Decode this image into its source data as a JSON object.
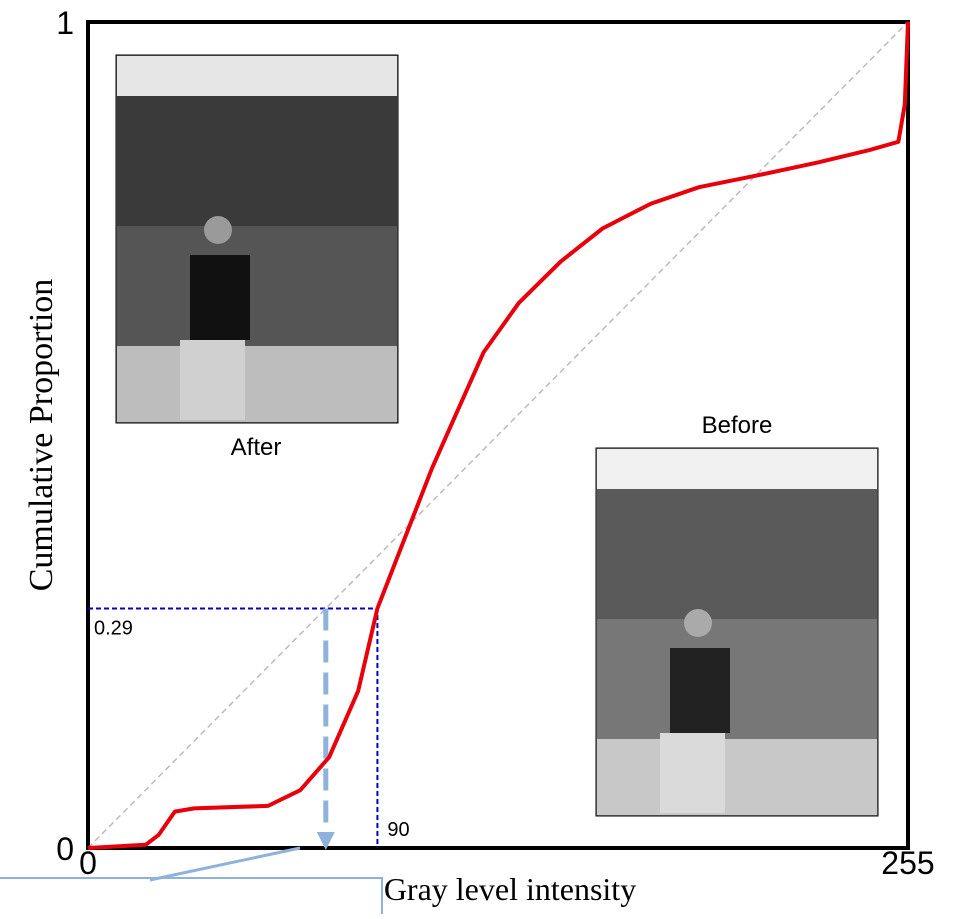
{
  "chart_data": {
    "type": "line",
    "x_label": "Gray level intensity",
    "y_label": "Cumulative Proportion",
    "x": [
      0,
      18,
      22,
      27,
      33,
      56,
      66,
      75,
      84,
      90,
      95,
      101,
      107,
      115,
      123,
      134,
      147,
      160,
      175,
      190,
      209,
      227,
      243,
      252,
      254,
      255
    ],
    "series": [
      {
        "color": "#e8000b",
        "values": [
          0,
          0.004,
          0.016,
          0.044,
          0.048,
          0.051,
          0.07,
          0.11,
          0.19,
          0.29,
          0.34,
          0.4,
          0.46,
          0.53,
          0.6,
          0.66,
          0.71,
          0.75,
          0.78,
          0.8,
          0.815,
          0.83,
          0.845,
          0.855,
          0.9,
          1
        ]
      }
    ],
    "xlim": [
      0,
      255
    ],
    "xticks": [
      0,
      255
    ],
    "ylim": [
      0,
      1
    ],
    "yticks": [
      0,
      1
    ],
    "reference_line": {
      "color": "#bbbbbb"
    },
    "annotation": {
      "x": 90,
      "y": 0.29,
      "color": "#0000cc",
      "arrow_color": "#8fb2dc"
    },
    "images": [
      {
        "label": "After"
      },
      {
        "label": "Before"
      }
    ]
  }
}
